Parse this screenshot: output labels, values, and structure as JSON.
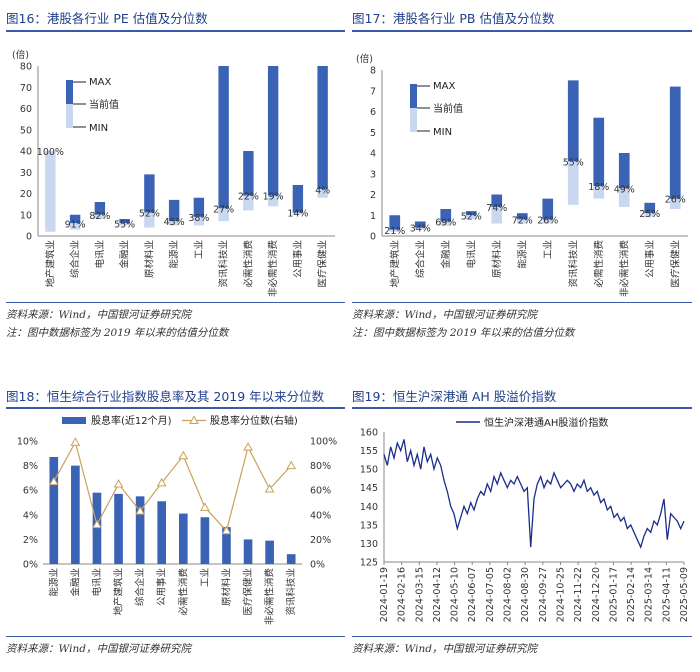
{
  "colors": {
    "title": "#1f3f8c",
    "range_dark": "#3a62b5",
    "range_light": "#c9d8f0",
    "line": "#1a2f8a",
    "marker": "#c9a15a",
    "bar": "#3a62b5"
  },
  "source_text": "资料来源：Wind，中国银河证券研究院",
  "note_text": "注：图中数据标签为 2019 年以来的估值分位数",
  "chart_data": [
    {
      "id": "fig16",
      "type": "bar",
      "title": "图16：港股各行业 PE 估值及分位数",
      "unit_label": "(倍)",
      "ylim": [
        0,
        80
      ],
      "yticks": [
        0,
        10,
        20,
        30,
        40,
        50,
        60,
        70,
        80
      ],
      "legend": {
        "max": "MAX",
        "current": "当前值",
        "min": "MIN"
      },
      "categories": [
        "地产建筑业",
        "综合企业",
        "电讯业",
        "金融业",
        "原材料业",
        "能源业",
        "工业",
        "资讯科技业",
        "必需性消费",
        "非必需性消费",
        "公用事业",
        "医疗保健业"
      ],
      "min": [
        2,
        3,
        8,
        5,
        4,
        5,
        5,
        7,
        12,
        14,
        10,
        18
      ],
      "current": [
        40,
        6,
        10,
        6,
        11,
        7,
        9,
        13,
        19,
        19,
        11,
        22
      ],
      "max": [
        40,
        10,
        16,
        8,
        29,
        17,
        18,
        80,
        40,
        80,
        24,
        80
      ],
      "labels": [
        "100%",
        "91%",
        "82%",
        "55%",
        "52%",
        "45%",
        "38%",
        "27%",
        "22%",
        "19%",
        "14%",
        "4%"
      ]
    },
    {
      "id": "fig17",
      "type": "bar",
      "title": "图17：港股各行业 PB 估值及分位数",
      "unit_label": "(倍)",
      "ylim": [
        0,
        8
      ],
      "yticks": [
        0,
        1,
        2,
        3,
        4,
        5,
        6,
        7,
        8
      ],
      "legend": {
        "max": "MAX",
        "current": "当前值",
        "min": "MIN"
      },
      "categories": [
        "地产建筑业",
        "综合企业",
        "金融业",
        "电讯业",
        "原材料业",
        "能源业",
        "工业",
        "资讯科技业",
        "必需性消费",
        "非必需性消费",
        "公用事业",
        "医疗保健业"
      ],
      "min": [
        0.2,
        0.3,
        0.5,
        0.8,
        0.6,
        0.6,
        0.6,
        1.5,
        1.8,
        1.4,
        0.9,
        1.3
      ],
      "current": [
        0.3,
        0.4,
        0.7,
        1.0,
        1.4,
        0.8,
        0.8,
        3.6,
        2.4,
        2.3,
        1.1,
        1.8
      ],
      "max": [
        1.0,
        0.7,
        1.3,
        1.2,
        2.0,
        1.1,
        1.8,
        7.5,
        5.7,
        4.0,
        1.6,
        7.2
      ],
      "labels": [
        "21%",
        "34%",
        "69%",
        "52%",
        "74%",
        "72%",
        "26%",
        "55%",
        "18%",
        "49%",
        "25%",
        "26%"
      ]
    },
    {
      "id": "fig18",
      "type": "bar",
      "title": "图18：恒生综合行业指数股息率及其 2019 年以来分位数",
      "legend": {
        "bar": "股息率(近12个月)",
        "line": "股息率分位数(右轴)"
      },
      "categories": [
        "能源业",
        "金融业",
        "电讯业",
        "地产建筑业",
        "综合企业",
        "公用事业",
        "必需性消费",
        "工业",
        "原材料业",
        "医疗保健业",
        "非必需性消费",
        "资讯科技业"
      ],
      "ylim_left": [
        0,
        10
      ],
      "yticks_left": [
        "0%",
        "2%",
        "4%",
        "6%",
        "8%",
        "10%"
      ],
      "ylim_right": [
        0,
        100
      ],
      "yticks_right": [
        "0%",
        "20%",
        "40%",
        "60%",
        "80%",
        "100%"
      ],
      "dividend_yield": [
        8.7,
        8.0,
        5.8,
        5.7,
        5.5,
        5.1,
        4.1,
        3.8,
        3.0,
        2.0,
        1.9,
        0.8
      ],
      "percentile": [
        67,
        99,
        32,
        65,
        43,
        66,
        88,
        46,
        27,
        95,
        61,
        80
      ]
    },
    {
      "id": "fig19",
      "type": "line",
      "title": "图19：恒生沪深港通 AH 股溢价指数",
      "legend": "恒生沪深港通AH股溢价指数",
      "ylim": [
        125,
        160
      ],
      "yticks": [
        125,
        130,
        135,
        140,
        145,
        150,
        155,
        160
      ],
      "xticks": [
        "2024-01-19",
        "2024-02-16",
        "2024-03-15",
        "2024-04-12",
        "2024-05-10",
        "2024-06-07",
        "2024-07-05",
        "2024-08-02",
        "2024-08-30",
        "2024-09-27",
        "2024-10-25",
        "2024-11-22",
        "2024-12-20",
        "2025-01-17",
        "2025-02-14",
        "2025-03-14",
        "2025-04-11",
        "2025-05-09"
      ],
      "series": [
        154,
        151,
        156,
        153,
        157,
        155,
        158,
        152,
        155,
        151,
        154,
        150,
        156,
        152,
        154,
        150,
        153,
        151,
        147,
        144,
        140,
        138,
        134,
        137,
        140,
        138,
        141,
        139,
        142,
        144,
        143,
        146,
        144,
        148,
        146,
        149,
        147,
        145,
        147,
        146,
        148,
        146,
        144,
        145,
        129,
        142,
        146,
        148,
        145,
        147,
        146,
        149,
        147,
        145,
        146,
        147,
        146,
        144,
        146,
        145,
        147,
        144,
        145,
        143,
        144,
        141,
        142,
        139,
        140,
        137,
        138,
        136,
        137,
        134,
        135,
        133,
        131,
        129,
        132,
        134,
        133,
        136,
        135,
        138,
        142,
        131,
        138,
        137,
        136,
        134,
        136
      ]
    }
  ]
}
